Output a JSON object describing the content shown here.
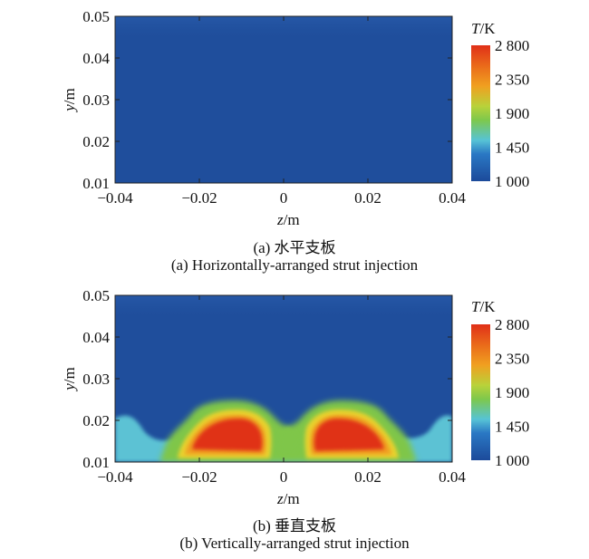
{
  "panels": [
    {
      "id": "a",
      "caption_cn": "(a) 水平支板",
      "caption_en": "(a) Horizontally-arranged strut injection",
      "xlabel_var": "z",
      "xlabel_unit": "/m",
      "ylabel_var": "y",
      "ylabel_unit": "/m",
      "x_ticks": [
        "−0.04",
        "−0.02",
        "0",
        "0.02",
        "0.04"
      ],
      "y_ticks": [
        "0.05",
        "0.04",
        "0.03",
        "0.02",
        "0.01"
      ],
      "colorbar_title_var": "T",
      "colorbar_title_unit": "/K",
      "colorbar_ticks": [
        "2 800",
        "2 350",
        "1 900",
        "1 450",
        "1 000"
      ]
    },
    {
      "id": "b",
      "caption_cn": "(b) 垂直支板",
      "caption_en": "(b) Vertically-arranged strut injection",
      "xlabel_var": "z",
      "xlabel_unit": "/m",
      "ylabel_var": "y",
      "ylabel_unit": "/m",
      "x_ticks": [
        "−0.04",
        "−0.02",
        "0",
        "0.02",
        "0.04"
      ],
      "y_ticks": [
        "0.05",
        "0.04",
        "0.03",
        "0.02",
        "0.01"
      ],
      "colorbar_title_var": "T",
      "colorbar_title_unit": "/K",
      "colorbar_ticks": [
        "2 800",
        "2 350",
        "1 900",
        "1 450",
        "1 000"
      ]
    }
  ],
  "chart_data": [
    {
      "type": "heatmap",
      "xlim": [
        -0.04,
        0.04
      ],
      "ylim": [
        0.01,
        0.05
      ],
      "color_range": [
        1000,
        2800
      ],
      "colors": {
        "background_field": "#1f4e9c",
        "cold": "#1c4a9a",
        "mid_low": "#56c3d6",
        "mid": "#7ec84c",
        "mid_high": "#f0a020",
        "hot": "#e03018"
      }
    },
    {
      "type": "heatmap",
      "xlim": [
        -0.04,
        0.04
      ],
      "ylim": [
        0.01,
        0.05
      ],
      "color_range": [
        1000,
        2800
      ],
      "colors": {
        "background_field": "#1f4e9c",
        "cold": "#1c4a9a",
        "mid_low": "#56c3d6",
        "mid": "#7ec84c",
        "mid_high": "#f0a020",
        "hot": "#e03018"
      }
    }
  ]
}
